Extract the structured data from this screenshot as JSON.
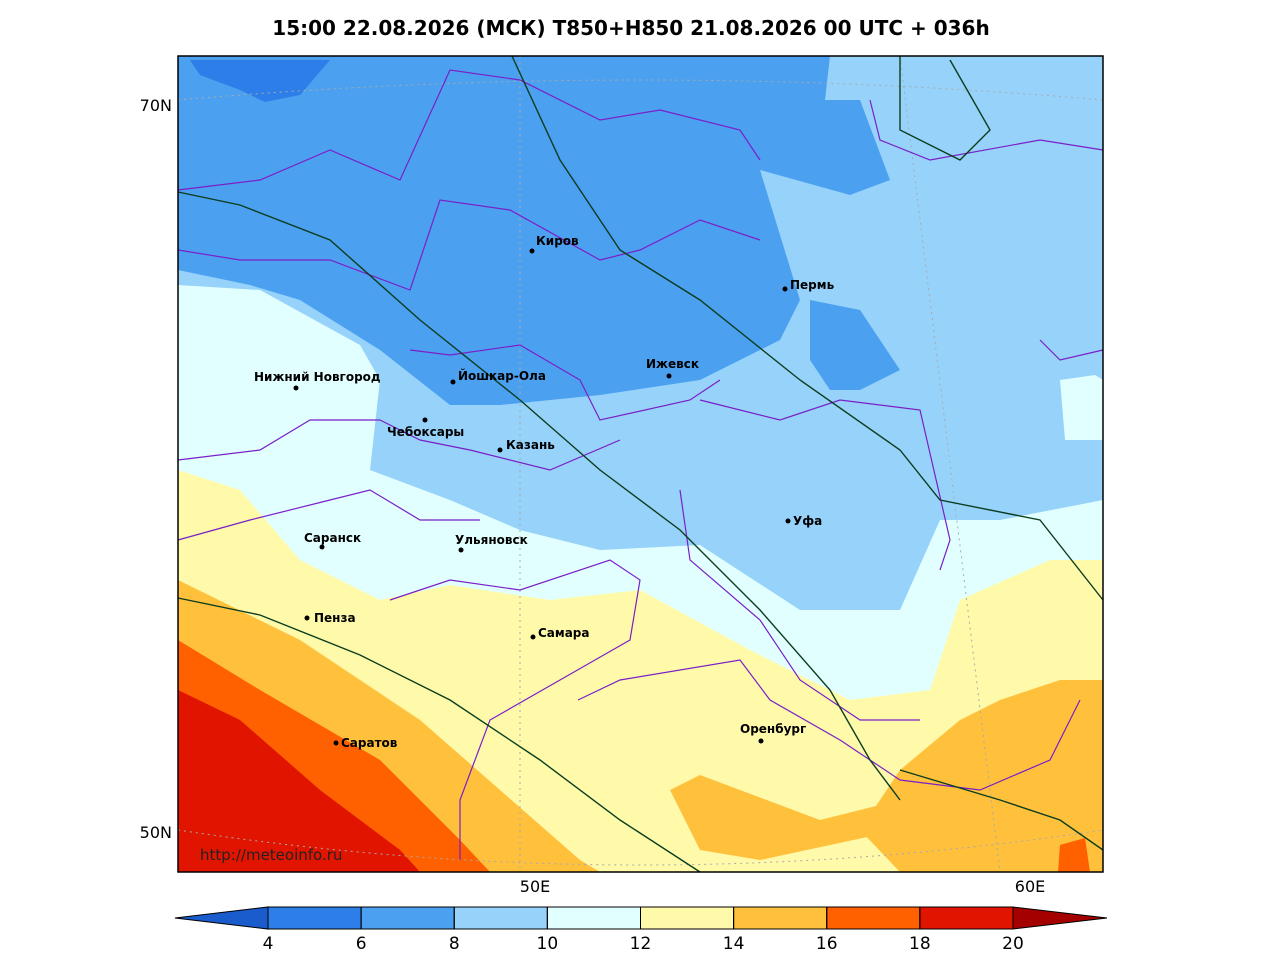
{
  "title": "15:00 22.08.2026 (МСК) T850+H850 21.08.2026 00 UTC + 036h",
  "latitude_labels": [
    "70N",
    "50N"
  ],
  "longitude_labels": [
    "50E",
    "60E"
  ],
  "cities": [
    "Киров",
    "Пермь",
    "Нижний Новгород",
    "Йошкар-Ола",
    "Ижевск",
    "Чебоксары",
    "Казань",
    "Уфа",
    "Саранск",
    "Ульяновск",
    "Пенза",
    "Самара",
    "Оренбург",
    "Саратов"
  ],
  "watermark": "http://meteoinfo.ru",
  "colorbar": {
    "ticks": [
      4,
      6,
      8,
      10,
      12,
      14,
      16,
      18,
      20
    ],
    "colors": [
      "#1a5ccc",
      "#2d7ee8",
      "#4ca0f0",
      "#96d2fa",
      "#e1ffff",
      "#fffaaa",
      "#ffc03c",
      "#ff6000",
      "#e11400",
      "#a50000"
    ]
  }
}
